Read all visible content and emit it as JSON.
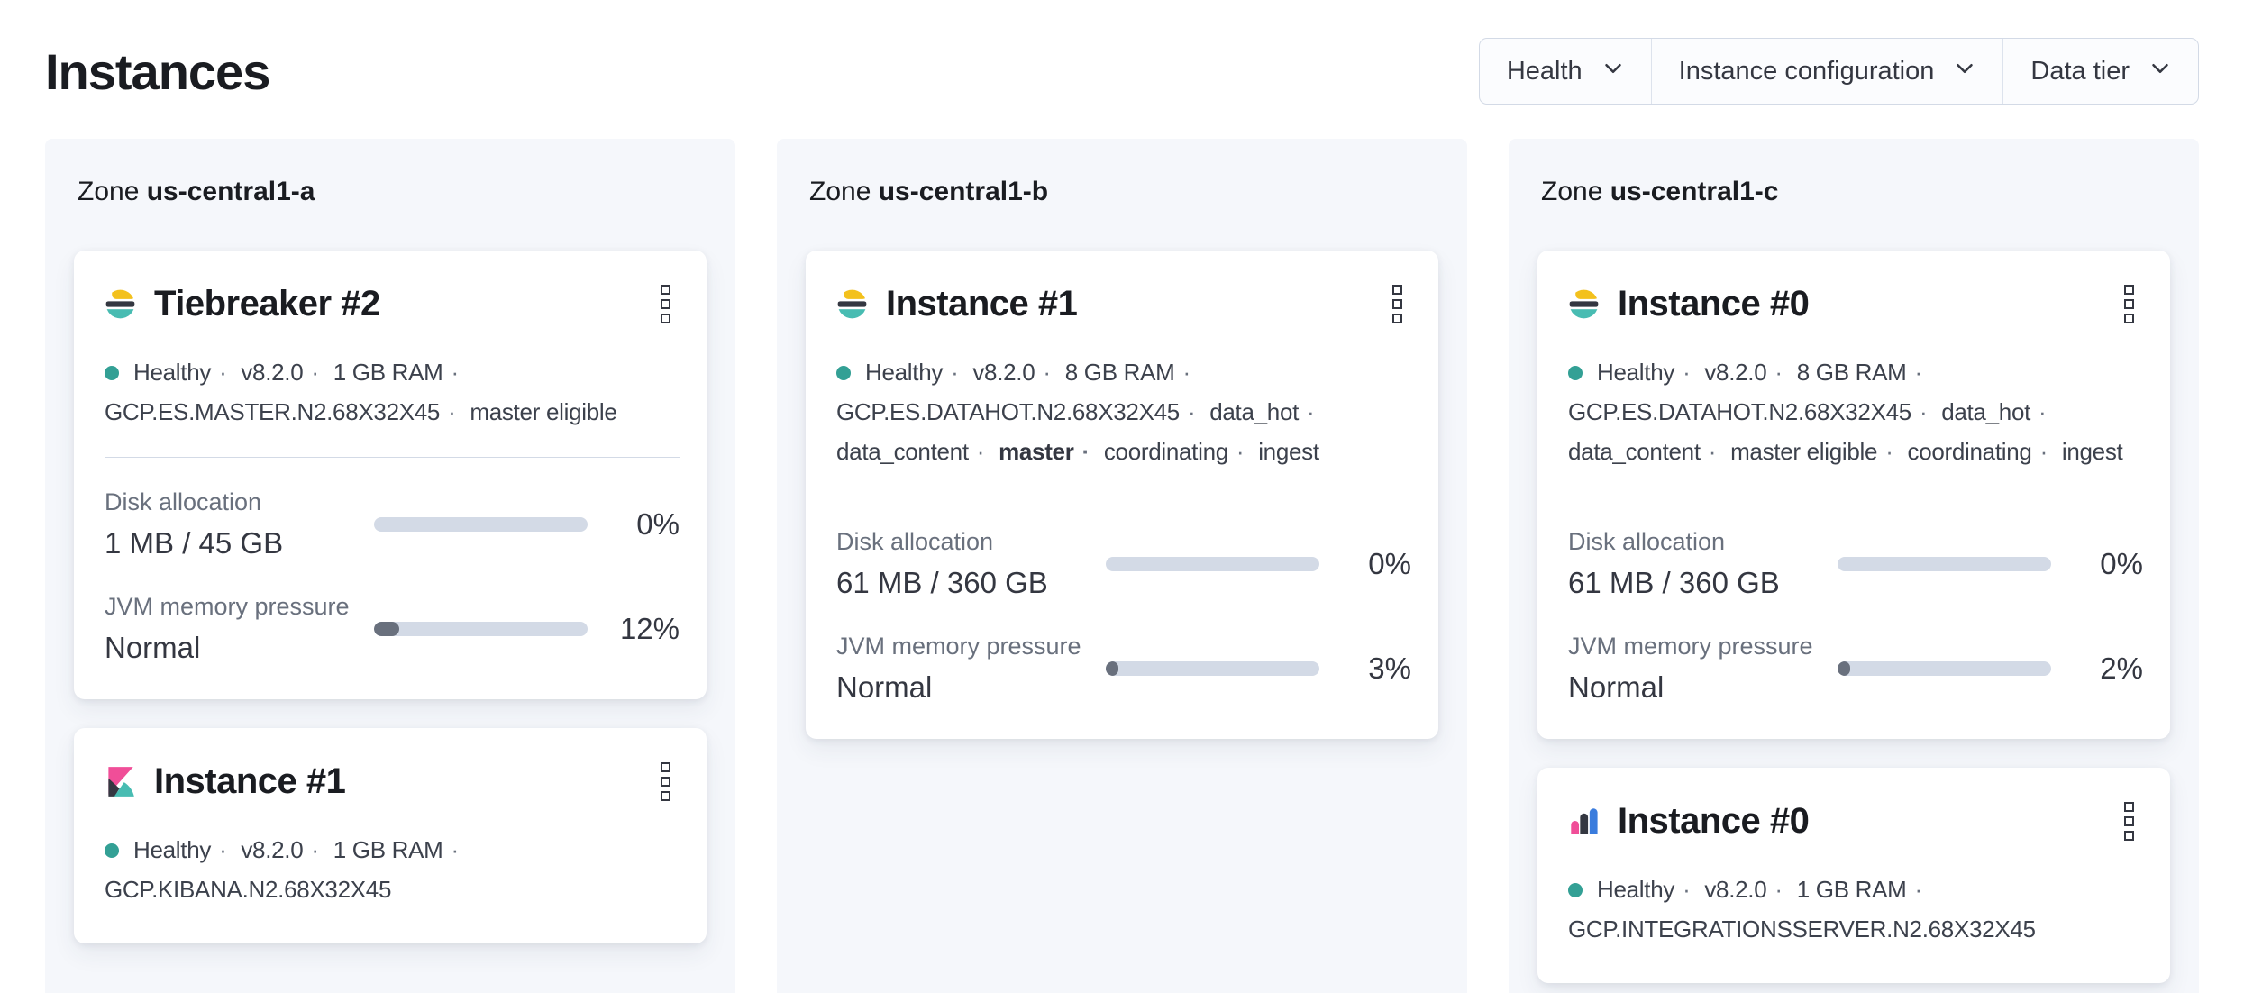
{
  "page": {
    "title": "Instances"
  },
  "filters": [
    {
      "label": "Health"
    },
    {
      "label": "Instance configuration"
    },
    {
      "label": "Data tier"
    }
  ],
  "zones": [
    {
      "label_prefix": "Zone",
      "name": "us-central1-a",
      "cards": [
        {
          "type": "elasticsearch",
          "title": "Tiebreaker #2",
          "status": [
            {
              "text": "Healthy",
              "health": true
            },
            {
              "text": "v8.2.0"
            },
            {
              "text": "1 GB RAM"
            },
            {
              "text": "GCP.ES.MASTER.N2.68X32X45"
            },
            {
              "text": "master eligible"
            }
          ],
          "metrics": [
            {
              "label": "Disk allocation",
              "value": "1 MB / 45 GB",
              "percent": 0,
              "percent_label": "0%"
            },
            {
              "label": "JVM memory pressure",
              "value": "Normal",
              "percent": 12,
              "percent_label": "12%"
            }
          ]
        },
        {
          "type": "kibana",
          "title": "Instance #1",
          "status": [
            {
              "text": "Healthy",
              "health": true
            },
            {
              "text": "v8.2.0"
            },
            {
              "text": "1 GB RAM"
            },
            {
              "text": "GCP.KIBANA.N2.68X32X45"
            }
          ],
          "metrics": []
        }
      ]
    },
    {
      "label_prefix": "Zone",
      "name": "us-central1-b",
      "cards": [
        {
          "type": "elasticsearch",
          "title": "Instance #1",
          "status": [
            {
              "text": "Healthy",
              "health": true
            },
            {
              "text": "v8.2.0"
            },
            {
              "text": "8 GB RAM"
            },
            {
              "text": "GCP.ES.DATAHOT.N2.68X32X45"
            },
            {
              "text": "data_hot"
            },
            {
              "text": "data_content"
            },
            {
              "text": "master",
              "bold": true
            },
            {
              "text": "coordinating"
            },
            {
              "text": "ingest"
            }
          ],
          "metrics": [
            {
              "label": "Disk allocation",
              "value": "61 MB / 360 GB",
              "percent": 0,
              "percent_label": "0%"
            },
            {
              "label": "JVM memory pressure",
              "value": "Normal",
              "percent": 3,
              "percent_label": "3%"
            }
          ]
        }
      ]
    },
    {
      "label_prefix": "Zone",
      "name": "us-central1-c",
      "cards": [
        {
          "type": "elasticsearch",
          "title": "Instance #0",
          "status": [
            {
              "text": "Healthy",
              "health": true
            },
            {
              "text": "v8.2.0"
            },
            {
              "text": "8 GB RAM"
            },
            {
              "text": "GCP.ES.DATAHOT.N2.68X32X45"
            },
            {
              "text": "data_hot"
            },
            {
              "text": "data_content"
            },
            {
              "text": "master eligible"
            },
            {
              "text": "coordinating"
            },
            {
              "text": "ingest"
            }
          ],
          "metrics": [
            {
              "label": "Disk allocation",
              "value": "61 MB / 360 GB",
              "percent": 0,
              "percent_label": "0%"
            },
            {
              "label": "JVM memory pressure",
              "value": "Normal",
              "percent": 2,
              "percent_label": "2%"
            }
          ]
        },
        {
          "type": "integrations_server",
          "title": "Instance #0",
          "status": [
            {
              "text": "Healthy",
              "health": true
            },
            {
              "text": "v8.2.0"
            },
            {
              "text": "1 GB RAM"
            },
            {
              "text": "GCP.INTEGRATIONSSERVER.N2.68X32X45"
            }
          ],
          "metrics": []
        }
      ]
    }
  ],
  "separator": "·",
  "icons": {
    "menu": "boxes-vertical-icon",
    "filter_chevron": "chevron-down-icon"
  },
  "colors": {
    "brand_yellow": "#f3c11d",
    "brand_dark": "#343741",
    "brand_pink": "#f04e98",
    "brand_blue": "#3a7cdd",
    "accent_teal": "#48bcb2",
    "healthy_dot": "#33a095",
    "bar_track": "#d3dae6",
    "bar_fill": "#69707d",
    "panel_bg": "#f5f7fb",
    "border": "#d3dae6",
    "text_subdued": "#69707d"
  }
}
